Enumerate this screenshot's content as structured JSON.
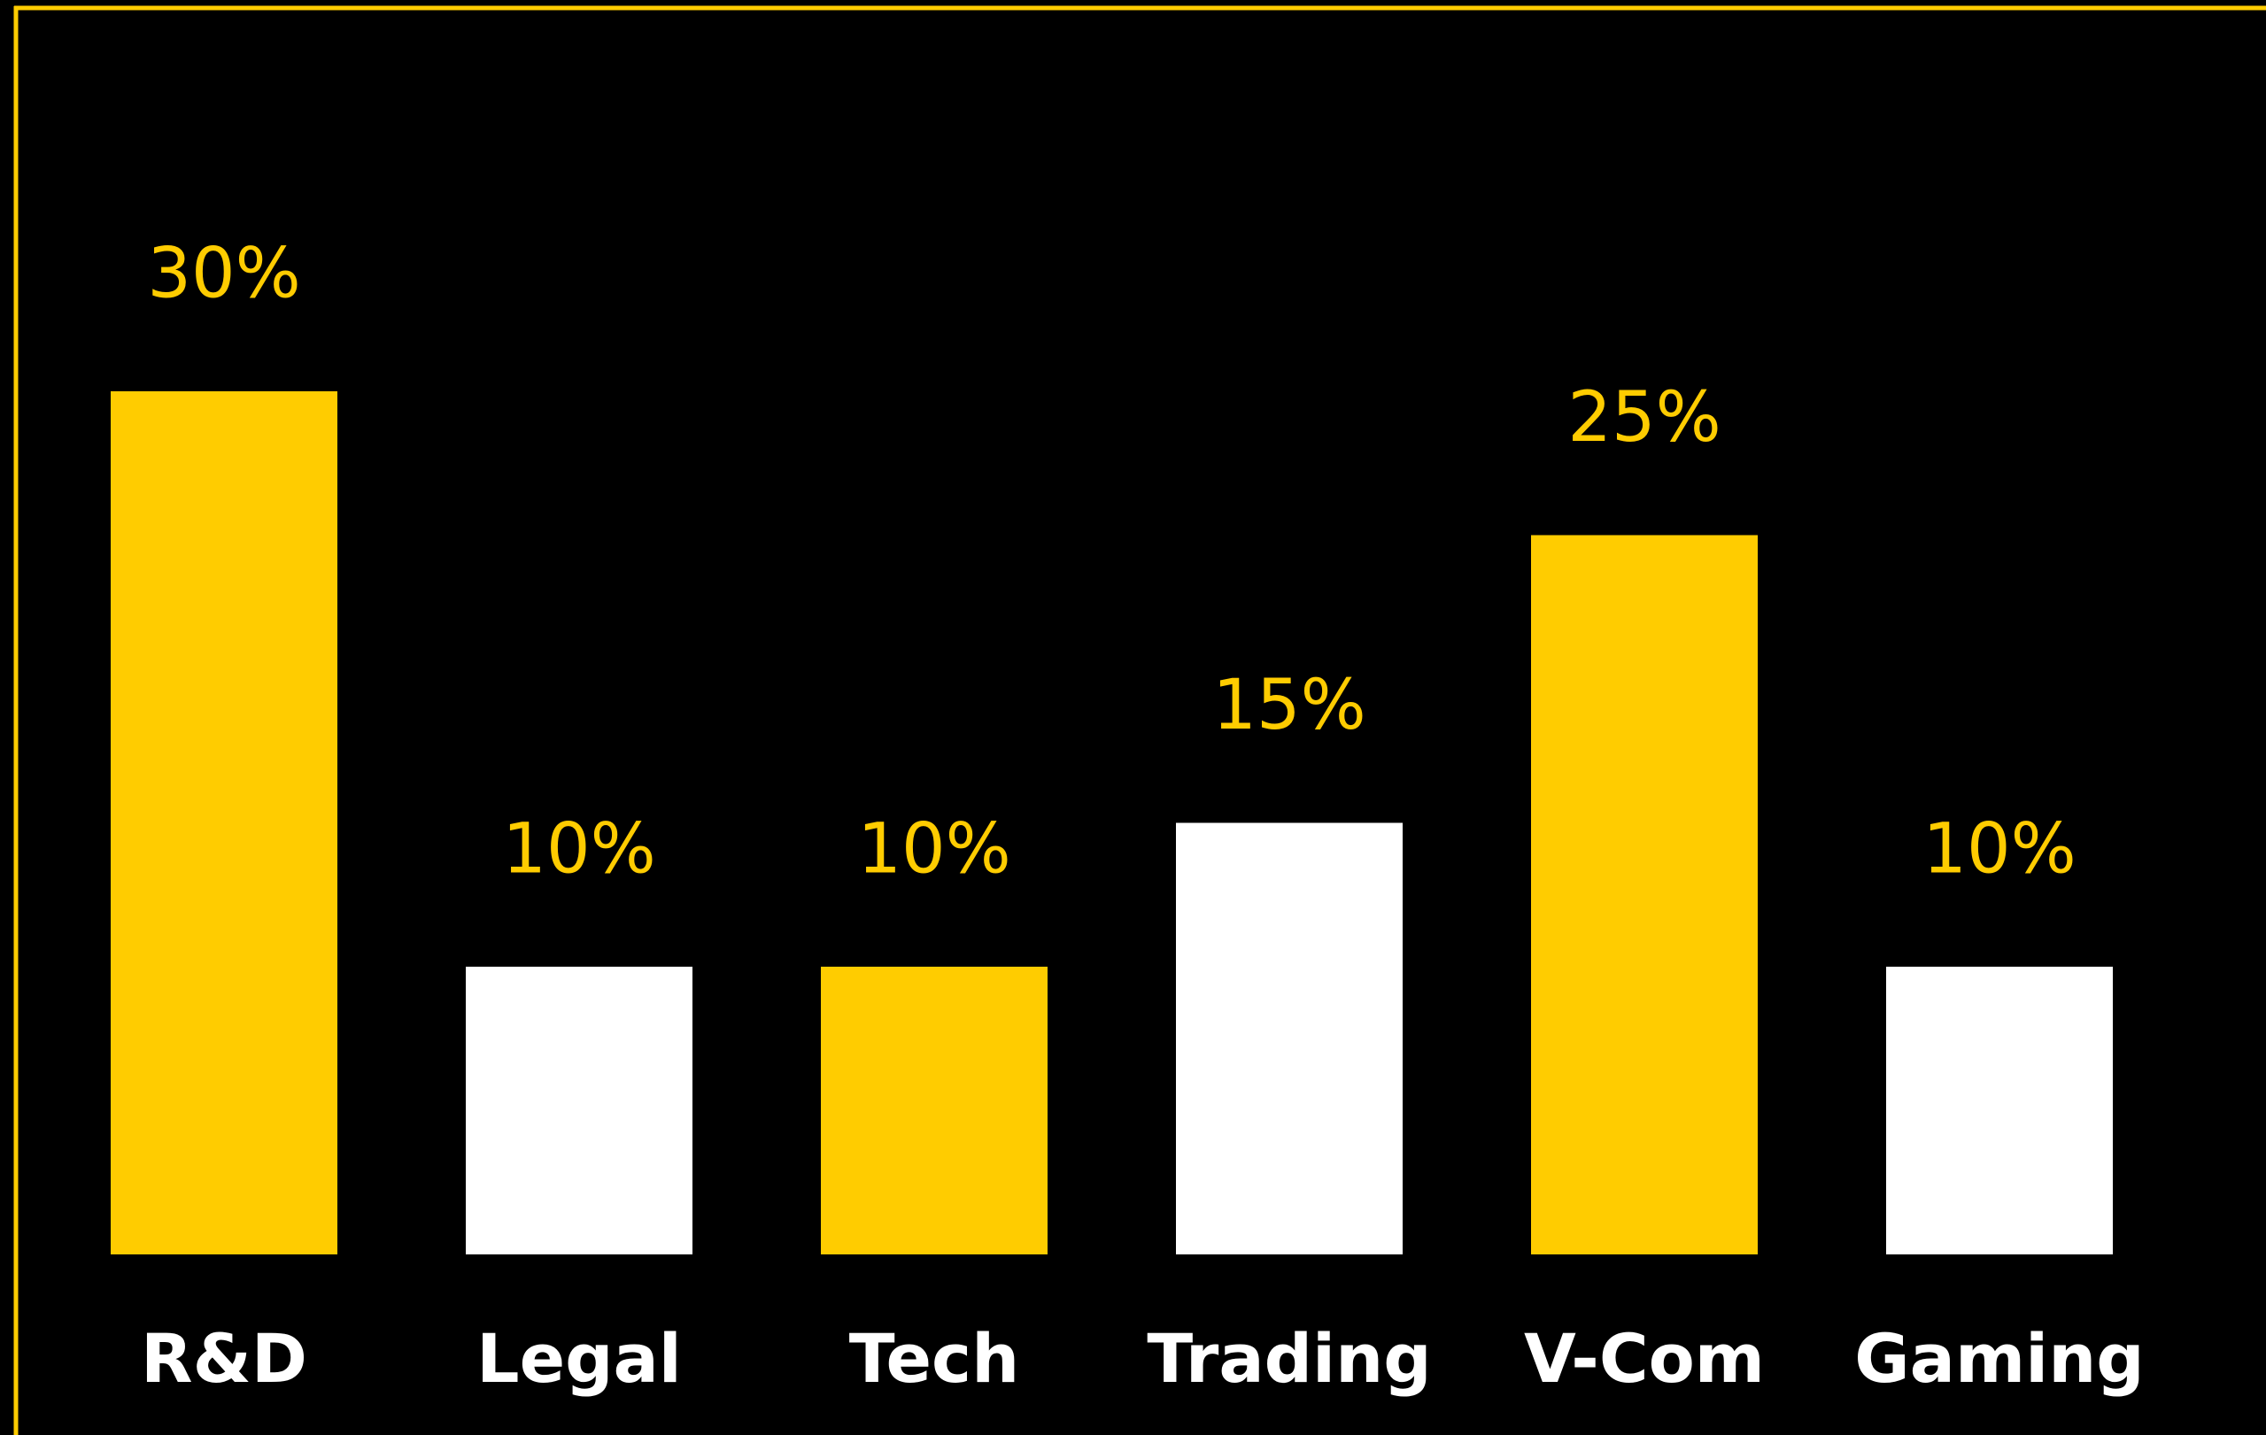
{
  "chart_data": {
    "type": "bar",
    "categories": [
      "R&D",
      "Legal",
      "Tech",
      "Trading",
      "V-Com",
      "Gaming"
    ],
    "values": [
      30,
      10,
      10,
      15,
      25,
      10
    ],
    "value_labels": [
      "30%",
      "10%",
      "10%",
      "15%",
      "25%",
      "10%"
    ],
    "colors": [
      "#ffcc00",
      "#ffffff",
      "#ffcc00",
      "#ffffff",
      "#ffcc00",
      "#ffffff"
    ],
    "frame_color": "#ffcc00"
  }
}
